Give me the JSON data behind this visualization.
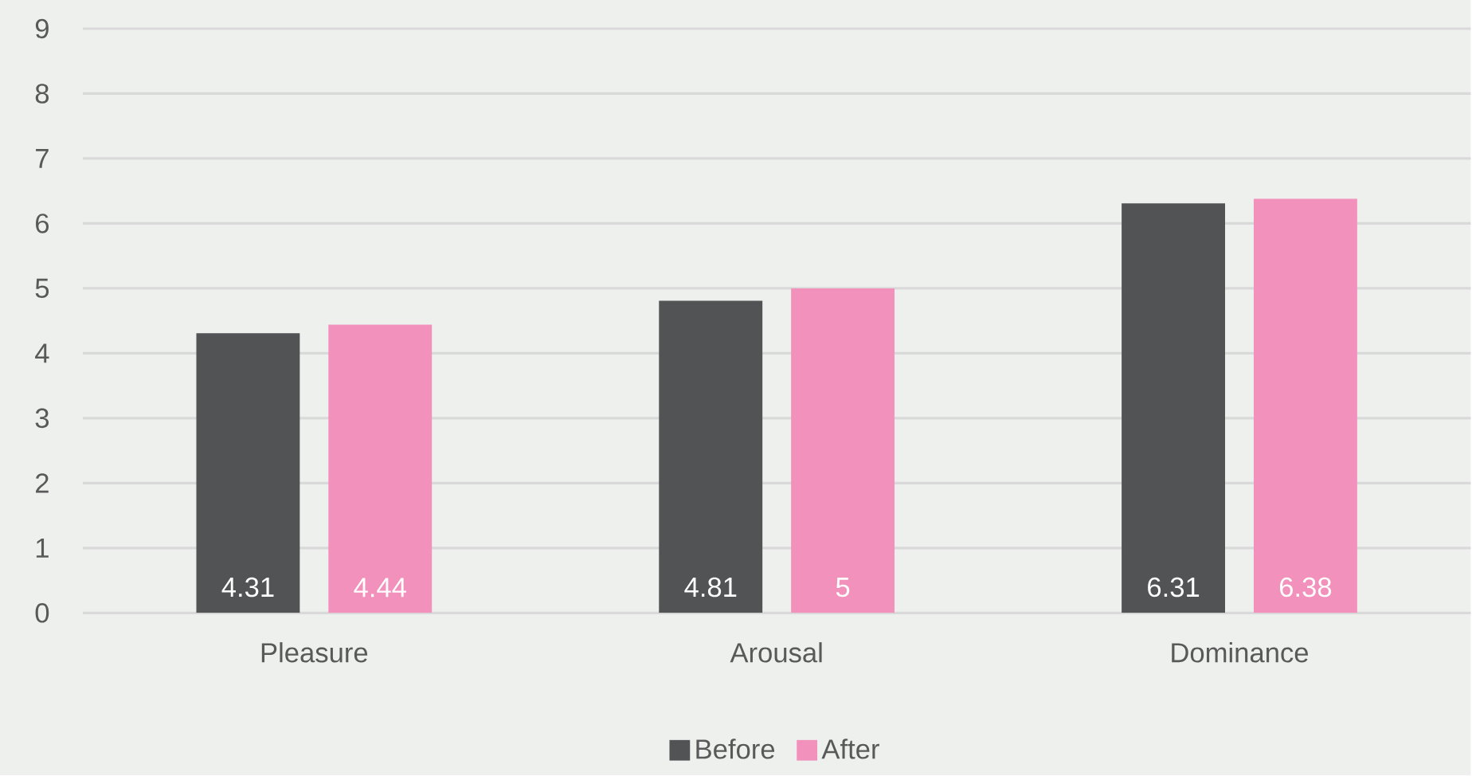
{
  "chart_data": {
    "type": "bar",
    "categories": [
      "Pleasure",
      "Arousal",
      "Dominance"
    ],
    "series": [
      {
        "name": "Before",
        "color": "#525355",
        "values": [
          4.31,
          4.81,
          6.31
        ]
      },
      {
        "name": "After",
        "color": "#f191bc",
        "values": [
          4.44,
          5,
          6.38
        ]
      }
    ],
    "ylim": [
      0,
      9
    ],
    "yticks": [
      0,
      1,
      2,
      3,
      4,
      5,
      6,
      7,
      8,
      9
    ],
    "grid": "y",
    "legend": "bottom",
    "data_labels": true
  }
}
